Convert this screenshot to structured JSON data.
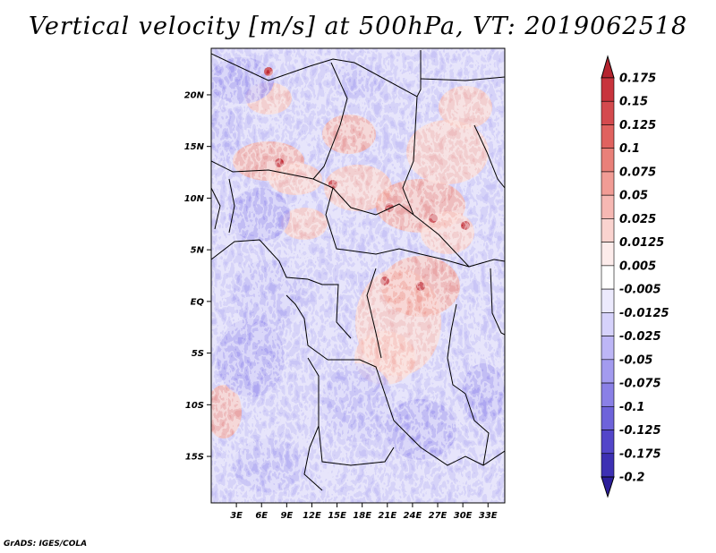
{
  "title": "Vertical velocity [m/s] at 500hPa, VT: 2019062518",
  "credit": "GrADS: IGES/COLA",
  "map": {
    "lon_range": [
      0,
      35
    ],
    "lat_range": [
      -19.5,
      24.5
    ],
    "lat_ticks": [
      {
        "value": 20,
        "label": "20N"
      },
      {
        "value": 15,
        "label": "15N"
      },
      {
        "value": 10,
        "label": "10N"
      },
      {
        "value": 5,
        "label": "5N"
      },
      {
        "value": 0,
        "label": "EQ"
      },
      {
        "value": -5,
        "label": "5S"
      },
      {
        "value": -10,
        "label": "10S"
      },
      {
        "value": -15,
        "label": "15S"
      }
    ],
    "lon_ticks": [
      {
        "value": 3,
        "label": "3E"
      },
      {
        "value": 6,
        "label": "6E"
      },
      {
        "value": 9,
        "label": "9E"
      },
      {
        "value": 12,
        "label": "12E"
      },
      {
        "value": 15,
        "label": "15E"
      },
      {
        "value": 18,
        "label": "18E"
      },
      {
        "value": 21,
        "label": "21E"
      },
      {
        "value": 24,
        "label": "24E"
      },
      {
        "value": 27,
        "label": "27E"
      },
      {
        "value": 30,
        "label": "30E"
      },
      {
        "value": 33,
        "label": "33E"
      }
    ]
  },
  "colorbar": {
    "top_color": "#b5242f",
    "bottom_color": "#2c1e9a",
    "boundaries": [
      {
        "label": "0.175",
        "color": "#b5242f"
      },
      {
        "label": "0.15",
        "color": "#c8343d"
      },
      {
        "label": "0.125",
        "color": "#d44a4e"
      },
      {
        "label": "0.1",
        "color": "#e0625f"
      },
      {
        "label": "0.075",
        "color": "#e98079"
      },
      {
        "label": "0.05",
        "color": "#f19c95"
      },
      {
        "label": "0.025",
        "color": "#f6b8b3"
      },
      {
        "label": "0.0125",
        "color": "#fad3cf"
      },
      {
        "label": "0.005",
        "color": "#fdeceb"
      },
      {
        "label": "-0.005",
        "color": "#ffffff"
      },
      {
        "label": "-0.0125",
        "color": "#eceafd"
      },
      {
        "label": "-0.025",
        "color": "#d6d2fb"
      },
      {
        "label": "-0.05",
        "color": "#bdb6f6"
      },
      {
        "label": "-0.075",
        "color": "#a39bef"
      },
      {
        "label": "-0.1",
        "color": "#8a80e6"
      },
      {
        "label": "-0.125",
        "color": "#6e63da"
      },
      {
        "label": "-0.175",
        "color": "#5346c9"
      },
      {
        "label": "-0.2",
        "color": "#3d30b3"
      }
    ]
  }
}
